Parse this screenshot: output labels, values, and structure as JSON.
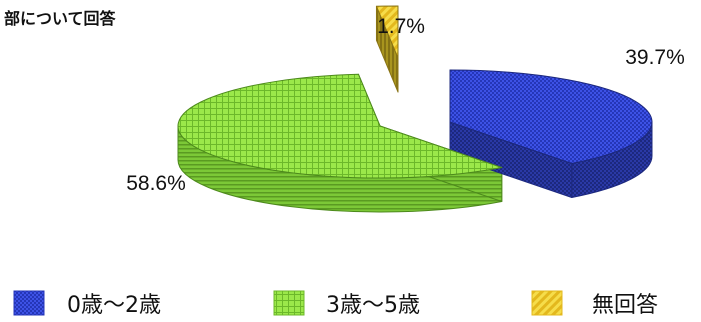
{
  "chart_data": {
    "type": "pie",
    "title": "部について回答",
    "slices": [
      {
        "label": "0歳～2歳",
        "value": 39.7,
        "value_label": "39.7%",
        "color": "#3547d6"
      },
      {
        "label": "3歳～5歳",
        "value": 58.6,
        "value_label": "58.6%",
        "color": "#87dd3a"
      },
      {
        "label": "無回答",
        "value": 1.7,
        "value_label": "1.7%",
        "color": "#f2d43a"
      }
    ],
    "legend_position": "bottom"
  }
}
